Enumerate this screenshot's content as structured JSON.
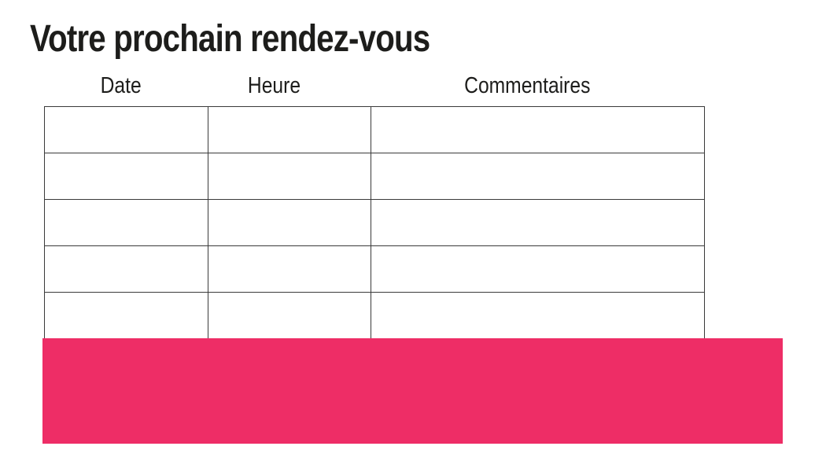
{
  "page": {
    "title": "Votre prochain rendez-vous",
    "background": "#ffffff",
    "text_color": "#1d1d1b"
  },
  "table": {
    "border_color": "#3a3a3a",
    "columns": [
      {
        "label": "Date"
      },
      {
        "label": "Heure"
      },
      {
        "label": "Commentaires"
      }
    ],
    "rows": [
      [
        "",
        "",
        ""
      ],
      [
        "",
        "",
        ""
      ],
      [
        "",
        "",
        ""
      ],
      [
        "",
        "",
        ""
      ],
      [
        "",
        "",
        ""
      ]
    ]
  },
  "banner": {
    "color": "#ee2d66"
  }
}
